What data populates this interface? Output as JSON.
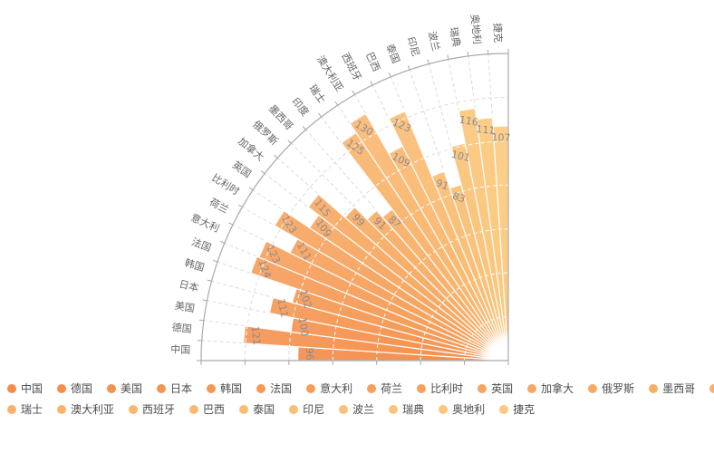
{
  "chart_data": {
    "type": "bar",
    "variant": "polar-fan-quarter",
    "title": "",
    "categories": [
      "中国",
      "德国",
      "美国",
      "日本",
      "韩国",
      "法国",
      "意大利",
      "荷兰",
      "比利时",
      "英国",
      "加拿大",
      "俄罗斯",
      "墨西哥",
      "印度",
      "瑞士",
      "澳大利亚",
      "西班牙",
      "巴西",
      "泰国",
      "印尼",
      "波兰",
      "瑞典",
      "奥地利",
      "捷克"
    ],
    "values": [
      96,
      121,
      100,
      111,
      102,
      124,
      123,
      111,
      123,
      109,
      115,
      99,
      91,
      87,
      125,
      130,
      109,
      123,
      91,
      83,
      101,
      116,
      111,
      107
    ],
    "value_labels_shown": true,
    "angle_axis": {
      "start_deg": 90,
      "end_deg": 180,
      "sector_deg": 3.75
    },
    "radial_axis": {
      "min": 0,
      "max": 140,
      "interval": 20
    },
    "grid": {
      "dashed_spokes": true,
      "dashed_arcs": true
    },
    "legend": {
      "position": "bottom-left",
      "row_split": 14
    }
  },
  "style": {
    "background": "#ffffff",
    "series_color_start": "#f48d4a",
    "series_color_end": "#fbca7d",
    "bar_border_color": "#ffffff",
    "axis_line_color": "#a9a9a9",
    "grid_dash_color": "#dcdcdc",
    "grid_dash_over_bars_color": "#ffffff",
    "value_label_color": "#8c8c8c",
    "category_label_color": "#666666",
    "legend_text_color": "#4c4c4c",
    "center_glow_color": "#ffffff"
  }
}
